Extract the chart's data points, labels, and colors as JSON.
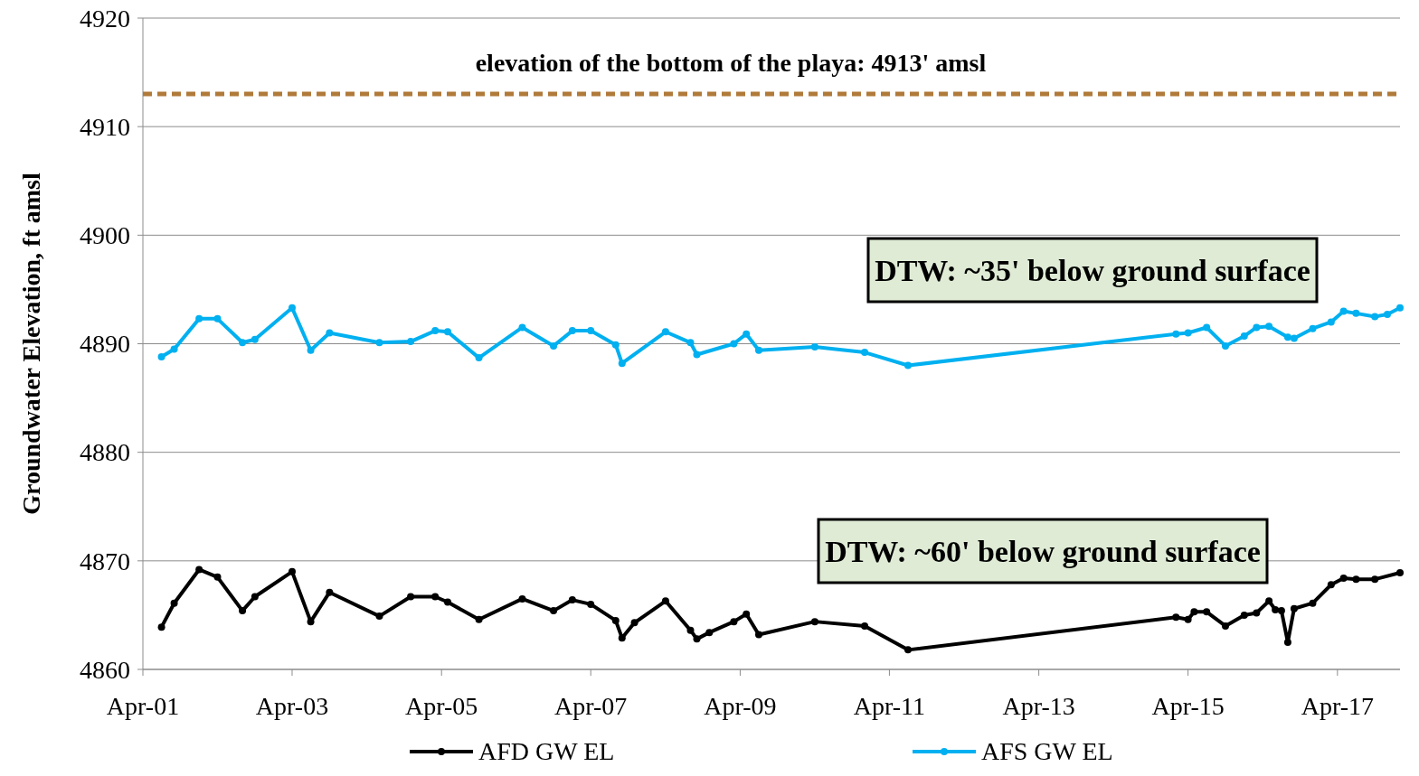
{
  "chart_data": {
    "type": "line",
    "ylabel": "Groundwater  Elevation, ft amsl",
    "xlim": [
      "2001-04",
      "2018-02"
    ],
    "xticks": [
      {
        "value": "2001-04",
        "label": "Apr-01"
      },
      {
        "value": "2003-04",
        "label": "Apr-03"
      },
      {
        "value": "2005-04",
        "label": "Apr-05"
      },
      {
        "value": "2007-04",
        "label": "Apr-07"
      },
      {
        "value": "2009-04",
        "label": "Apr-09"
      },
      {
        "value": "2011-04",
        "label": "Apr-11"
      },
      {
        "value": "2013-04",
        "label": "Apr-13"
      },
      {
        "value": "2015-04",
        "label": "Apr-15"
      },
      {
        "value": "2017-04",
        "label": "Apr-17"
      }
    ],
    "ylim": [
      4860,
      4920
    ],
    "yticks": [
      4860,
      4870,
      4880,
      4890,
      4900,
      4910,
      4920
    ],
    "grid": "y",
    "legend": "bottom",
    "marker": "circle",
    "line_style": "solid",
    "ref_lines": [
      {
        "axis": "y",
        "value": 4913,
        "label": "elevation of the bottom of the playa: 4913' amsl",
        "color": "#b07a3a",
        "line_style": "dashed"
      }
    ],
    "annotations": [
      "DTW: ~35' below ground surface",
      "DTW: ~60' below ground surface"
    ],
    "series": [
      {
        "name": "AFD GW EL",
        "color": "#000000",
        "x": [
          "2001-07",
          "2001-09",
          "2002-01",
          "2002-04",
          "2002-08",
          "2002-10",
          "2003-04",
          "2003-07",
          "2003-10",
          "2004-06",
          "2004-11",
          "2005-03",
          "2005-05",
          "2005-10",
          "2006-05",
          "2006-10",
          "2007-01",
          "2007-04",
          "2007-08",
          "2007-09",
          "2007-11",
          "2008-04",
          "2008-08",
          "2008-09",
          "2008-11",
          "2009-03",
          "2009-05",
          "2009-07",
          "2010-04",
          "2010-12",
          "2011-07",
          "2015-02",
          "2015-04",
          "2015-05",
          "2015-07",
          "2015-10",
          "2016-01",
          "2016-03",
          "2016-05",
          "2016-06",
          "2016-07",
          "2016-08",
          "2016-09",
          "2016-12",
          "2017-03",
          "2017-05",
          "2017-07",
          "2017-10",
          "2018-02"
        ],
        "values": [
          4863.9,
          4866.1,
          4869.2,
          4868.5,
          4865.4,
          4866.7,
          4869.0,
          4864.4,
          4867.1,
          4864.9,
          4866.7,
          4866.7,
          4866.2,
          4864.6,
          4866.5,
          4865.4,
          4866.4,
          4866.0,
          4864.5,
          4862.9,
          4864.3,
          4866.3,
          4863.6,
          4862.8,
          4863.4,
          4864.4,
          4865.1,
          4863.2,
          4864.4,
          4864.0,
          4861.8,
          4864.8,
          4864.6,
          4865.3,
          4865.3,
          4864.0,
          4865.0,
          4865.2,
          4866.3,
          4865.5,
          4865.4,
          4862.5,
          4865.6,
          4866.1,
          4867.8,
          4868.4,
          4868.3,
          4868.3,
          4868.9
        ]
      },
      {
        "name": "AFS GW EL",
        "color": "#00b0f0",
        "x": [
          "2001-07",
          "2001-09",
          "2002-01",
          "2002-04",
          "2002-08",
          "2002-10",
          "2003-04",
          "2003-07",
          "2003-10",
          "2004-06",
          "2004-11",
          "2005-03",
          "2005-05",
          "2005-10",
          "2006-05",
          "2006-10",
          "2007-01",
          "2007-04",
          "2007-08",
          "2007-09",
          "2008-04",
          "2008-08",
          "2008-09",
          "2009-03",
          "2009-05",
          "2009-07",
          "2010-04",
          "2010-12",
          "2011-07",
          "2015-02",
          "2015-04",
          "2015-07",
          "2015-10",
          "2016-01",
          "2016-03",
          "2016-05",
          "2016-08",
          "2016-09",
          "2016-12",
          "2017-03",
          "2017-05",
          "2017-07",
          "2017-10",
          "2017-12",
          "2018-02"
        ],
        "values": [
          4888.8,
          4889.5,
          4892.3,
          4892.3,
          4890.1,
          4890.4,
          4893.3,
          4889.4,
          4891.0,
          4890.1,
          4890.2,
          4891.2,
          4891.1,
          4888.7,
          4891.5,
          4889.8,
          4891.2,
          4891.2,
          4889.9,
          4888.2,
          4891.1,
          4890.1,
          4889.0,
          4890.0,
          4890.9,
          4889.4,
          4889.7,
          4889.2,
          4888.0,
          4890.9,
          4891.0,
          4891.5,
          4889.8,
          4890.7,
          4891.5,
          4891.6,
          4890.6,
          4890.5,
          4891.4,
          4892.0,
          4893.0,
          4892.8,
          4892.5,
          4892.7,
          4893.3
        ]
      }
    ]
  }
}
